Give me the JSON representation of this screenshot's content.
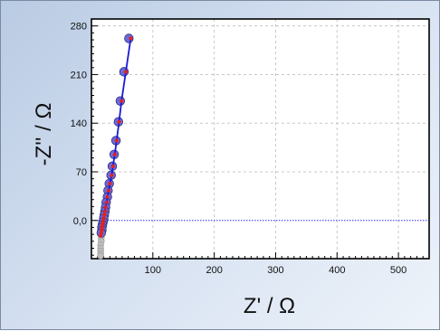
{
  "chart_data": {
    "type": "scatter",
    "title": "",
    "xlabel": "Z' / Ω",
    "ylabel": "-Z'' / Ω",
    "xlim": [
      0,
      550
    ],
    "ylim": [
      -55,
      290
    ],
    "x_ticks": [
      100,
      200,
      300,
      400,
      500
    ],
    "x_tick_labels": [
      "100",
      "200",
      "300",
      "400",
      "500"
    ],
    "y_ticks": [
      0,
      70,
      140,
      210,
      280
    ],
    "y_tick_labels": [
      "0,0",
      "70",
      "140",
      "210",
      "280"
    ],
    "grid": true,
    "legend": "none",
    "reference_line_y": 0,
    "series": [
      {
        "kind": "measured",
        "color": "#6a6adb",
        "points": [
          [
            61,
            262
          ],
          [
            53,
            214
          ],
          [
            47,
            172
          ],
          [
            44,
            142
          ],
          [
            40,
            115
          ],
          [
            37,
            95
          ],
          [
            34,
            78
          ],
          [
            32,
            65
          ],
          [
            29,
            53
          ],
          [
            27,
            43
          ],
          [
            26,
            34
          ],
          [
            24,
            26
          ],
          [
            23,
            19
          ],
          [
            22,
            13
          ],
          [
            21,
            8
          ],
          [
            20,
            3
          ],
          [
            19,
            -2
          ],
          [
            18,
            -6
          ],
          [
            17,
            -10
          ],
          [
            17,
            -14
          ],
          [
            16,
            -18
          ]
        ]
      },
      {
        "kind": "fit",
        "color": "#1a1ad6",
        "marker_color": "#e8201a",
        "points": [
          [
            64,
            262
          ],
          [
            56,
            214
          ],
          [
            49,
            172
          ],
          [
            45,
            142
          ],
          [
            41,
            115
          ],
          [
            38,
            95
          ],
          [
            35,
            78
          ],
          [
            33,
            65
          ],
          [
            30,
            53
          ],
          [
            28,
            43
          ],
          [
            26,
            34
          ],
          [
            25,
            26
          ],
          [
            23,
            19
          ],
          [
            22,
            13
          ],
          [
            21,
            8
          ],
          [
            20,
            3
          ],
          [
            19,
            -2
          ],
          [
            18,
            -6
          ],
          [
            17,
            -10
          ],
          [
            17,
            -14
          ],
          [
            16,
            -18
          ],
          [
            15,
            -22
          ]
        ]
      },
      {
        "kind": "excluded",
        "color": "#bdbdbd",
        "points": [
          [
            16,
            -25
          ],
          [
            16,
            -30
          ],
          [
            15,
            -35
          ],
          [
            15,
            -40
          ],
          [
            15,
            -44
          ],
          [
            15,
            -48
          ],
          [
            15,
            -51
          ]
        ]
      }
    ]
  }
}
